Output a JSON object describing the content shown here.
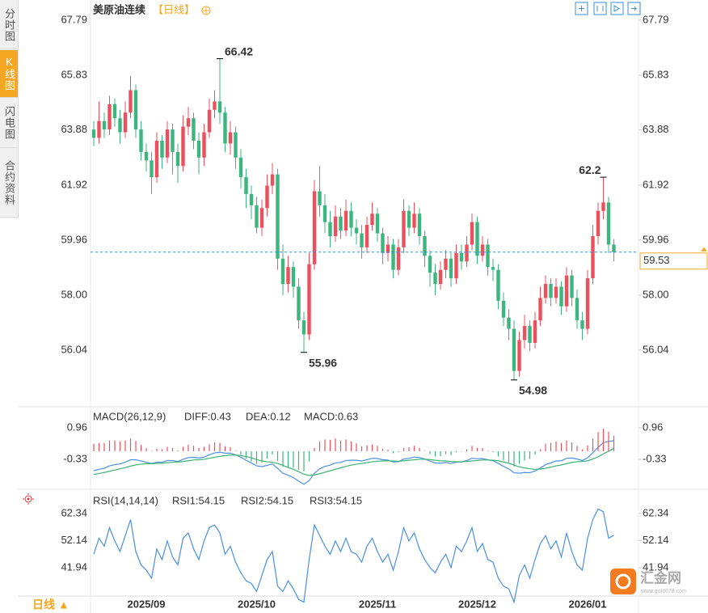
{
  "header": {
    "title": "美原油连续",
    "period": "【日线】"
  },
  "sidebar": {
    "tabs": [
      "分时图",
      "K线图",
      "闪电图",
      "合约资料"
    ],
    "active": 1
  },
  "footer": {
    "period": "日线 ▲"
  },
  "watermark": {
    "name": "汇金网",
    "url": "www.gold678.com"
  },
  "chart_data": [
    {
      "type": "candlestick",
      "categories": [
        null,
        null,
        null,
        null,
        null,
        null,
        null,
        null,
        null,
        null,
        "2025/09",
        null,
        null,
        null,
        null,
        null,
        null,
        null,
        null,
        null,
        null,
        null,
        null,
        null,
        null,
        null,
        null,
        null,
        null,
        null,
        null,
        "2025/10",
        null,
        null,
        null,
        null,
        null,
        null,
        null,
        null,
        null,
        null,
        null,
        null,
        null,
        null,
        null,
        null,
        null,
        null,
        null,
        null,
        null,
        null,
        "2025/11",
        null,
        null,
        null,
        null,
        null,
        null,
        null,
        null,
        null,
        null,
        null,
        null,
        null,
        null,
        null,
        null,
        null,
        null,
        "2025/12",
        null,
        null,
        null,
        null,
        null,
        null,
        null,
        null,
        null,
        null,
        null,
        null,
        null,
        null,
        null,
        null,
        null,
        null,
        null,
        null,
        "2026/01",
        null,
        null,
        null,
        null,
        null
      ],
      "open": [
        63.9,
        63.6,
        64.2,
        63.9,
        64.8,
        64.3,
        63.8,
        64.5,
        65.3,
        63.9,
        63.1,
        62.8,
        62.2,
        63.5,
        62.9,
        63.9,
        63.1,
        62.6,
        64.0,
        64.3,
        63.5,
        62.9,
        63.8,
        64.6,
        64.9,
        64.5,
        63.4,
        63.8,
        62.9,
        62.2,
        61.6,
        61.2,
        60.4,
        61.1,
        61.9,
        62.3,
        59.3,
        58.4,
        59.0,
        58.3,
        57.1,
        56.6,
        59.1,
        61.7,
        61.2,
        60.6,
        60.1,
        60.8,
        60.3,
        61.0,
        60.4,
        60.2,
        59.7,
        60.5,
        60.9,
        60.2,
        59.5,
        59.8,
        58.9,
        59.7,
        61.0,
        60.4,
        60.9,
        60.1,
        59.4,
        58.8,
        58.4,
        58.9,
        59.3,
        58.6,
        59.5,
        59.2,
        59.8,
        60.6,
        59.4,
        59.8,
        59.0,
        58.9,
        57.8,
        57.2,
        56.8,
        55.3,
        56.4,
        56.9,
        56.3,
        57.1,
        57.9,
        58.4,
        57.9,
        58.3,
        57.6,
        58.7,
        57.9,
        57.1,
        56.8,
        58.6,
        60.1,
        61.0,
        61.3,
        59.8
      ],
      "high": [
        64.2,
        64.9,
        64.5,
        65.1,
        65.0,
        64.6,
        64.9,
        65.8,
        65.5,
        64.2,
        63.4,
        63.1,
        63.8,
        63.7,
        64.2,
        64.1,
        63.4,
        64.4,
        64.7,
        64.5,
        63.8,
        64.1,
        65.0,
        65.3,
        66.42,
        64.7,
        64.2,
        64.0,
        63.2,
        62.5,
        61.9,
        61.5,
        61.4,
        62.3,
        62.7,
        62.5,
        59.8,
        59.4,
        59.2,
        58.6,
        57.4,
        59.5,
        62.1,
        62.6,
        61.6,
        61.0,
        61.2,
        61.1,
        61.4,
        61.3,
        60.7,
        60.5,
        60.8,
        61.3,
        61.1,
        60.4,
        60.1,
        60.0,
        60.0,
        61.4,
        61.2,
        61.3,
        61.1,
        60.3,
        59.6,
        59.1,
        59.2,
        59.6,
        59.5,
        59.8,
        59.8,
        60.1,
        60.9,
        60.8,
        60.1,
        60.0,
        59.3,
        59.1,
        58.1,
        57.5,
        57.1,
        56.7,
        57.3,
        57.1,
        57.4,
        58.3,
        58.7,
        58.6,
        58.6,
        58.5,
        59.0,
        58.9,
        58.2,
        57.4,
        58.9,
        60.5,
        61.3,
        62.2,
        61.5,
        60.0
      ],
      "low": [
        63.3,
        63.4,
        63.6,
        63.7,
        64.0,
        63.4,
        63.6,
        64.3,
        63.6,
        62.8,
        62.4,
        61.6,
        62.0,
        62.5,
        62.7,
        62.3,
        62.0,
        62.4,
        63.7,
        63.2,
        62.3,
        62.6,
        63.6,
        64.3,
        64.1,
        63.1,
        63.0,
        62.5,
        61.8,
        61.1,
        60.7,
        60.2,
        60.1,
        60.8,
        61.6,
        58.9,
        58.0,
        58.1,
        57.9,
        56.8,
        55.96,
        56.4,
        58.9,
        60.8,
        60.2,
        59.7,
        59.9,
        60.0,
        60.1,
        60.1,
        59.8,
        59.3,
        59.5,
        60.3,
        59.9,
        59.1,
        59.2,
        58.6,
        58.7,
        59.5,
        60.1,
        60.2,
        59.8,
        59.0,
        58.3,
        58.0,
        58.2,
        58.6,
        58.3,
        58.4,
        58.9,
        59.0,
        59.6,
        59.1,
        59.2,
        58.7,
        58.5,
        57.5,
        56.9,
        56.4,
        54.98,
        55.1,
        56.1,
        56.0,
        56.1,
        56.9,
        57.7,
        57.6,
        57.7,
        57.3,
        57.4,
        57.6,
        56.8,
        56.4,
        56.6,
        58.4,
        59.8,
        60.7,
        59.5,
        59.2
      ],
      "close": [
        63.6,
        64.2,
        63.9,
        64.8,
        64.3,
        63.8,
        64.5,
        65.3,
        63.9,
        63.1,
        62.8,
        62.2,
        63.5,
        62.9,
        63.9,
        63.1,
        62.6,
        64.0,
        64.3,
        63.5,
        62.9,
        63.8,
        64.6,
        64.9,
        64.5,
        63.4,
        63.8,
        62.9,
        62.2,
        61.6,
        61.2,
        60.4,
        61.1,
        61.9,
        62.3,
        59.3,
        58.4,
        59.0,
        58.3,
        57.1,
        56.6,
        59.1,
        61.7,
        61.2,
        60.6,
        60.1,
        60.8,
        60.3,
        61.0,
        60.4,
        60.2,
        59.7,
        60.5,
        60.9,
        60.2,
        59.5,
        59.8,
        58.9,
        59.7,
        61.0,
        60.4,
        60.9,
        60.1,
        59.4,
        58.8,
        58.4,
        58.9,
        59.3,
        58.6,
        59.5,
        59.2,
        59.8,
        60.6,
        59.4,
        59.8,
        59.0,
        58.9,
        57.8,
        57.2,
        56.8,
        55.3,
        56.4,
        56.9,
        56.3,
        57.1,
        57.9,
        58.4,
        57.9,
        58.3,
        57.6,
        58.7,
        57.9,
        57.1,
        56.8,
        58.6,
        60.1,
        61.0,
        61.3,
        59.8,
        59.53
      ],
      "up_color": "#eb505c",
      "down_color": "#3db57e",
      "last_price_color": "#f5a623",
      "last_line_color": "#3a8fd9",
      "ylim": [
        54.11,
        68.28
      ],
      "yticks": [
        67.79,
        65.83,
        63.88,
        61.92,
        59.96,
        {
          "value": 58,
          "label": "58.00"
        },
        56.04
      ],
      "annotations": [
        {
          "series": "high",
          "index": 24,
          "side": "right",
          "color": "#eb505c"
        },
        {
          "series": "low",
          "index": 40,
          "side": "right",
          "color": "#3db57e"
        },
        {
          "series": "low",
          "index": 80,
          "side": "right",
          "color": "#3db57e"
        },
        {
          "series": "high",
          "index": 97,
          "side": "left",
          "color": "#eb505c"
        }
      ]
    },
    {
      "type": "macd",
      "label": "MACD(26,12,9)",
      "up_color": "#eb505c",
      "down_color": "#3db57e",
      "series": [
        {
          "name": "DIFF:0.43",
          "color": "#4a90e2",
          "values": [
            -0.8,
            -0.74,
            -0.7,
            -0.6,
            -0.55,
            -0.52,
            -0.45,
            -0.35,
            -0.35,
            -0.4,
            -0.45,
            -0.5,
            -0.45,
            -0.45,
            -0.38,
            -0.38,
            -0.42,
            -0.33,
            -0.26,
            -0.25,
            -0.28,
            -0.24,
            -0.15,
            -0.07,
            -0.04,
            -0.08,
            -0.08,
            -0.15,
            -0.25,
            -0.37,
            -0.48,
            -0.6,
            -0.63,
            -0.58,
            -0.52,
            -0.7,
            -0.9,
            -0.98,
            -1.08,
            -1.22,
            -1.35,
            -1.2,
            -0.9,
            -0.72,
            -0.62,
            -0.57,
            -0.48,
            -0.46,
            -0.38,
            -0.37,
            -0.37,
            -0.4,
            -0.35,
            -0.29,
            -0.3,
            -0.35,
            -0.36,
            -0.44,
            -0.43,
            -0.32,
            -0.29,
            -0.24,
            -0.26,
            -0.32,
            -0.4,
            -0.48,
            -0.49,
            -0.46,
            -0.5,
            -0.45,
            -0.44,
            -0.38,
            -0.29,
            -0.31,
            -0.3,
            -0.35,
            -0.39,
            -0.5,
            -0.62,
            -0.72,
            -0.88,
            -0.9,
            -0.87,
            -0.88,
            -0.81,
            -0.69,
            -0.55,
            -0.48,
            -0.4,
            -0.39,
            -0.29,
            -0.28,
            -0.32,
            -0.38,
            -0.27,
            -0.06,
            0.16,
            0.35,
            0.4,
            0.43
          ]
        },
        {
          "name": "DEA:0.12",
          "color": "#3cb371",
          "values": [
            -0.95,
            -0.91,
            -0.87,
            -0.82,
            -0.77,
            -0.72,
            -0.67,
            -0.61,
            -0.56,
            -0.53,
            -0.51,
            -0.51,
            -0.5,
            -0.49,
            -0.47,
            -0.45,
            -0.44,
            -0.42,
            -0.39,
            -0.36,
            -0.35,
            -0.33,
            -0.29,
            -0.25,
            -0.21,
            -0.18,
            -0.16,
            -0.16,
            -0.18,
            -0.22,
            -0.27,
            -0.34,
            -0.4,
            -0.43,
            -0.45,
            -0.5,
            -0.58,
            -0.66,
            -0.74,
            -0.84,
            -0.94,
            -0.99,
            -0.97,
            -0.92,
            -0.86,
            -0.8,
            -0.74,
            -0.68,
            -0.62,
            -0.57,
            -0.53,
            -0.5,
            -0.47,
            -0.43,
            -0.41,
            -0.4,
            -0.39,
            -0.4,
            -0.41,
            -0.39,
            -0.37,
            -0.35,
            -0.33,
            -0.33,
            -0.34,
            -0.37,
            -0.39,
            -0.4,
            -0.42,
            -0.43,
            -0.43,
            -0.42,
            -0.4,
            -0.38,
            -0.36,
            -0.36,
            -0.37,
            -0.39,
            -0.44,
            -0.49,
            -0.57,
            -0.64,
            -0.68,
            -0.72,
            -0.74,
            -0.73,
            -0.7,
            -0.65,
            -0.6,
            -0.56,
            -0.51,
            -0.46,
            -0.43,
            -0.42,
            -0.39,
            -0.32,
            -0.23,
            -0.11,
            0.0,
            0.12
          ]
        },
        {
          "name": "MACD:0.63",
          "color": "#63b8e6",
          "kind": "bar",
          "values": [
            0.3,
            0.34,
            0.34,
            0.44,
            0.44,
            0.4,
            0.44,
            0.52,
            0.42,
            0.26,
            0.12,
            0.02,
            0.1,
            0.08,
            0.18,
            0.14,
            0.04,
            0.18,
            0.26,
            0.22,
            0.14,
            0.18,
            0.28,
            0.36,
            0.34,
            0.2,
            0.16,
            0.02,
            -0.14,
            -0.3,
            -0.42,
            -0.52,
            -0.46,
            -0.3,
            -0.14,
            -0.4,
            -0.64,
            -0.64,
            -0.68,
            -0.76,
            -0.82,
            -0.42,
            0.14,
            0.4,
            0.48,
            0.46,
            0.52,
            0.44,
            0.48,
            0.4,
            0.32,
            0.2,
            0.24,
            0.28,
            0.22,
            0.1,
            0.06,
            -0.08,
            -0.04,
            0.14,
            0.16,
            0.22,
            0.14,
            0.02,
            -0.12,
            -0.22,
            -0.2,
            -0.12,
            -0.16,
            -0.04,
            -0.02,
            0.08,
            0.22,
            0.14,
            0.12,
            0.02,
            -0.04,
            -0.22,
            -0.36,
            -0.46,
            -0.62,
            -0.52,
            -0.38,
            -0.32,
            -0.14,
            0.08,
            0.3,
            0.34,
            0.4,
            0.34,
            0.44,
            0.36,
            0.22,
            0.08,
            0.24,
            0.52,
            0.78,
            0.92,
            0.8,
            0.63
          ]
        }
      ],
      "ylim": [
        -1.49,
        1.75
      ],
      "yticks": [
        0.96,
        -0.33
      ]
    },
    {
      "type": "line",
      "label": "RSI(14,14,14)",
      "color": "#4a90e2",
      "legend": [
        {
          "name": "RSI1:54.15",
          "color": "#4a90e2"
        },
        {
          "name": "RSI2:54.15",
          "color": "#3cb371"
        },
        {
          "name": "RSI3:54.15",
          "color": "#63b8e6"
        }
      ],
      "values": [
        47,
        53,
        50,
        57,
        52,
        48,
        54,
        60,
        48,
        43,
        41,
        38,
        49,
        45,
        52,
        46,
        43,
        53,
        55,
        49,
        45,
        52,
        57,
        58,
        55,
        47,
        50,
        44,
        40,
        37,
        36,
        33,
        39,
        45,
        48,
        35,
        33,
        37,
        34,
        30,
        29,
        45,
        58,
        54,
        50,
        47,
        52,
        48,
        53,
        48,
        47,
        44,
        50,
        53,
        48,
        44,
        47,
        41,
        48,
        57,
        52,
        55,
        49,
        45,
        42,
        40,
        44,
        47,
        42,
        50,
        48,
        52,
        57,
        48,
        51,
        45,
        44,
        38,
        35,
        34,
        29,
        39,
        43,
        38,
        45,
        51,
        54,
        49,
        52,
        46,
        55,
        48,
        43,
        41,
        53,
        60,
        64,
        63,
        53,
        54.15
      ],
      "ylim": [
        31.9,
        70.5
      ],
      "yticks": [
        62.34,
        52.14,
        41.94
      ]
    }
  ]
}
